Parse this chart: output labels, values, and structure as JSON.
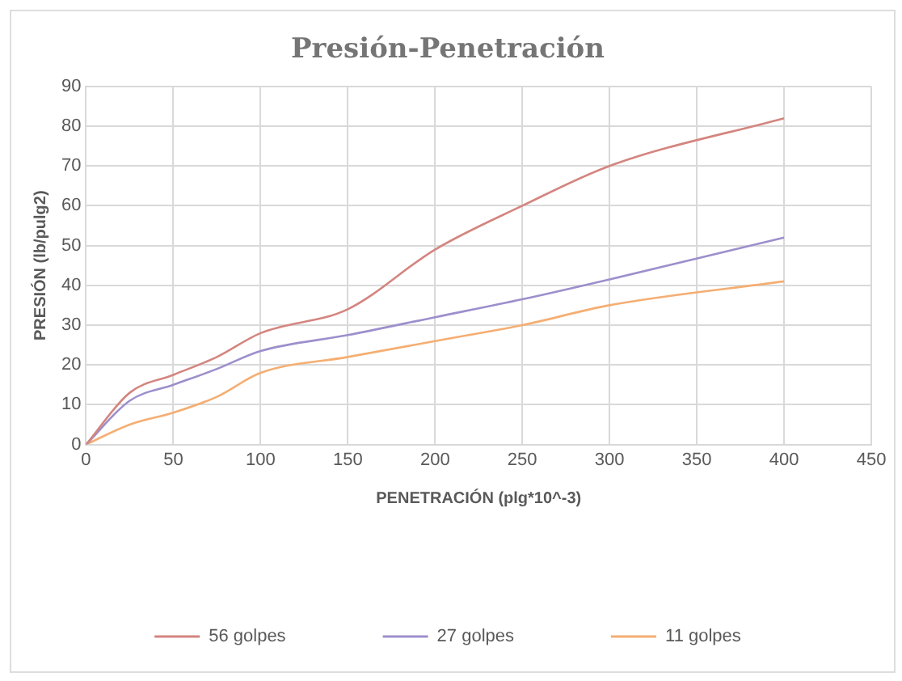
{
  "chart_data": {
    "type": "line",
    "title": "Presión-Penetración",
    "xlabel": "PENETRACIÓN (plg*10^-3)",
    "ylabel": "PRESIÓN (lb/pulg2)",
    "x": [
      0,
      25,
      50,
      75,
      100,
      150,
      200,
      250,
      300,
      400
    ],
    "series": [
      {
        "name": "56 golpes",
        "color": "#d4857f",
        "values": [
          0,
          13,
          17.5,
          22,
          28,
          34,
          49,
          60,
          70,
          82
        ]
      },
      {
        "name": "27 golpes",
        "color": "#9d8fcc",
        "values": [
          0,
          11,
          15,
          19,
          23.5,
          27.5,
          32,
          36.5,
          41.5,
          52
        ]
      },
      {
        "name": "11 golpes",
        "color": "#f5ae72",
        "values": [
          0,
          5,
          8,
          12,
          18,
          22,
          26,
          30,
          35,
          41
        ]
      }
    ],
    "xlim": [
      0,
      450
    ],
    "xticks": [
      0,
      50,
      100,
      150,
      200,
      250,
      300,
      350,
      400,
      450
    ],
    "ylim": [
      0,
      90
    ],
    "yticks": [
      0,
      10,
      20,
      30,
      40,
      50,
      60,
      70,
      80,
      90
    ],
    "grid": true,
    "legend": "bottom",
    "marker": "none",
    "line_style": "solid"
  }
}
